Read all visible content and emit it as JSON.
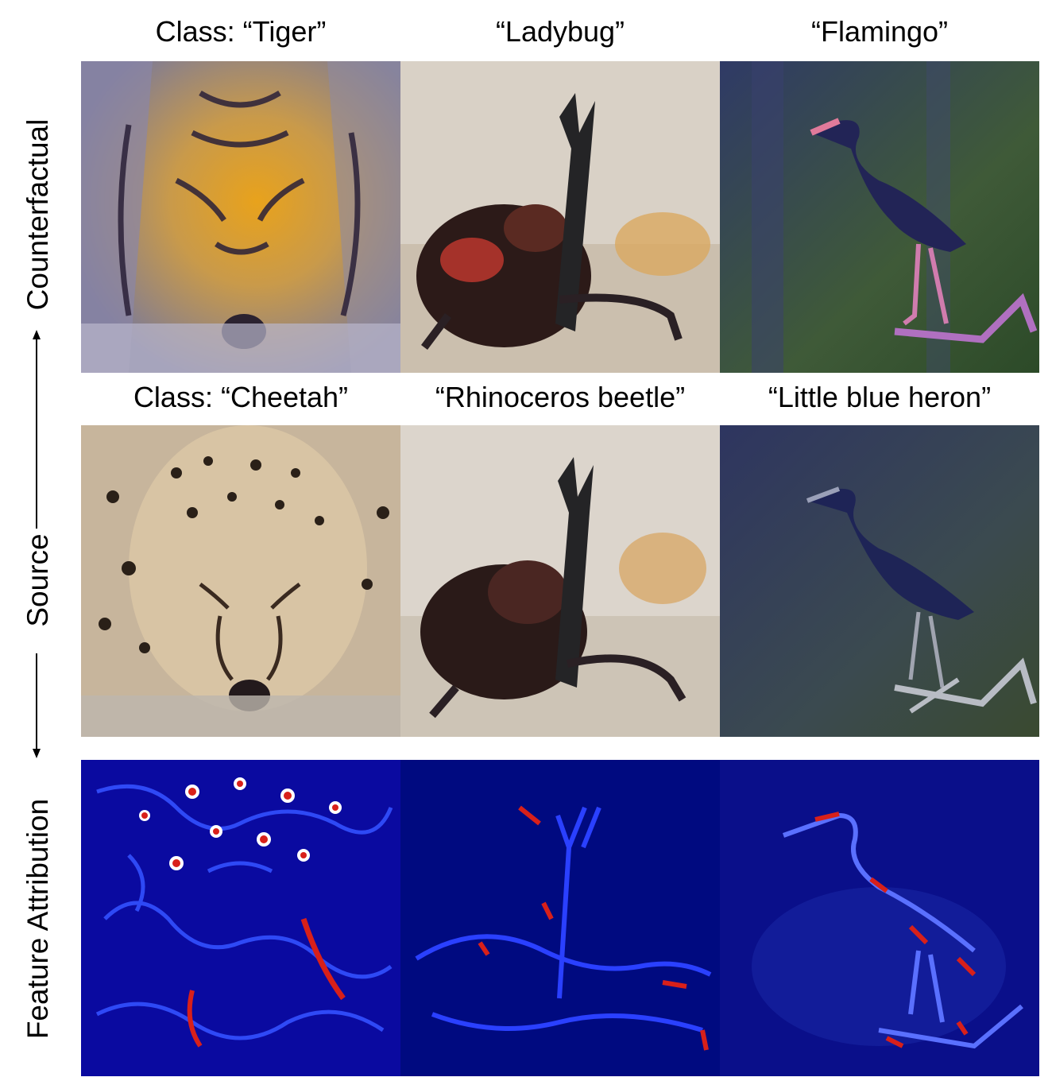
{
  "row_labels": {
    "counterfactual": "Counterfactual",
    "source": "Source",
    "attribution": "Feature Attribution"
  },
  "counterfactual_labels": [
    "Class: “Tiger”",
    "“Ladybug”",
    "“Flamingo”"
  ],
  "source_labels": [
    "Class: “Cheetah”",
    "“Rhinoceros beetle”",
    "“Little blue heron”"
  ],
  "colors": {
    "heatmap_low": "#00007a",
    "heatmap_mid": "#2a3cff",
    "heatmap_high": "#d8201a",
    "heatmap_peak": "#ffffff"
  },
  "panels": {
    "counterfactual": [
      "tiger-striped-cheetah-face",
      "rhinoceros-beetle-with-red-markings",
      "heron-with-pink-flamingo-features"
    ],
    "source": [
      "sleeping-cheetah-face",
      "rhinoceros-beetle",
      "little-blue-heron-on-branch"
    ],
    "attribution": [
      "cheetah-attribution-heatmap",
      "beetle-attribution-heatmap",
      "heron-attribution-heatmap"
    ]
  }
}
